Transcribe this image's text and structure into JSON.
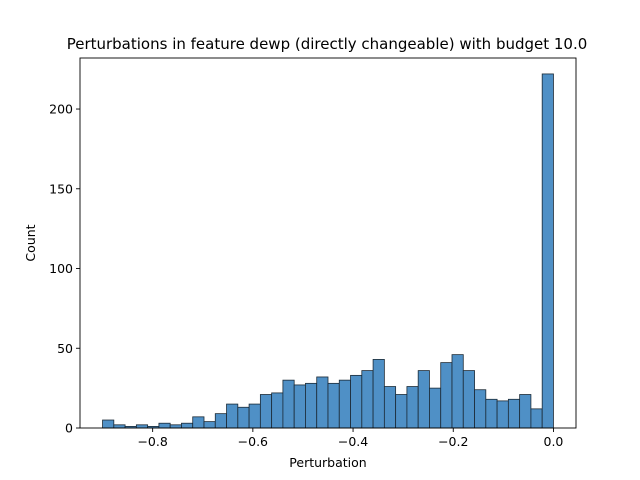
{
  "chart_data": {
    "type": "bar",
    "title": "Perturbations in feature dewp (directly changeable) with budget 10.0",
    "xlabel": "Perturbation",
    "ylabel": "Count",
    "xlim": [
      -0.945,
      0.045
    ],
    "ylim": [
      0,
      232
    ],
    "grid": false,
    "x_ticks": [
      -0.8,
      -0.6,
      -0.4,
      -0.2,
      0.0
    ],
    "x_tick_labels": [
      "−0.8",
      "−0.6",
      "−0.4",
      "−0.2",
      "0.0"
    ],
    "y_ticks": [
      0,
      50,
      100,
      150,
      200
    ],
    "y_tick_labels": [
      "0",
      "50",
      "100",
      "150",
      "200"
    ],
    "bin_start": -0.9,
    "bin_width": 0.0225,
    "values": [
      5,
      2,
      1,
      2,
      1,
      3,
      2,
      3,
      7,
      4,
      9,
      15,
      13,
      15,
      21,
      22,
      30,
      27,
      28,
      32,
      28,
      30,
      33,
      36,
      43,
      26,
      21,
      26,
      36,
      25,
      41,
      46,
      36,
      24,
      18,
      17,
      18,
      21,
      12,
      222
    ],
    "bar_color": "#4f90c6"
  }
}
